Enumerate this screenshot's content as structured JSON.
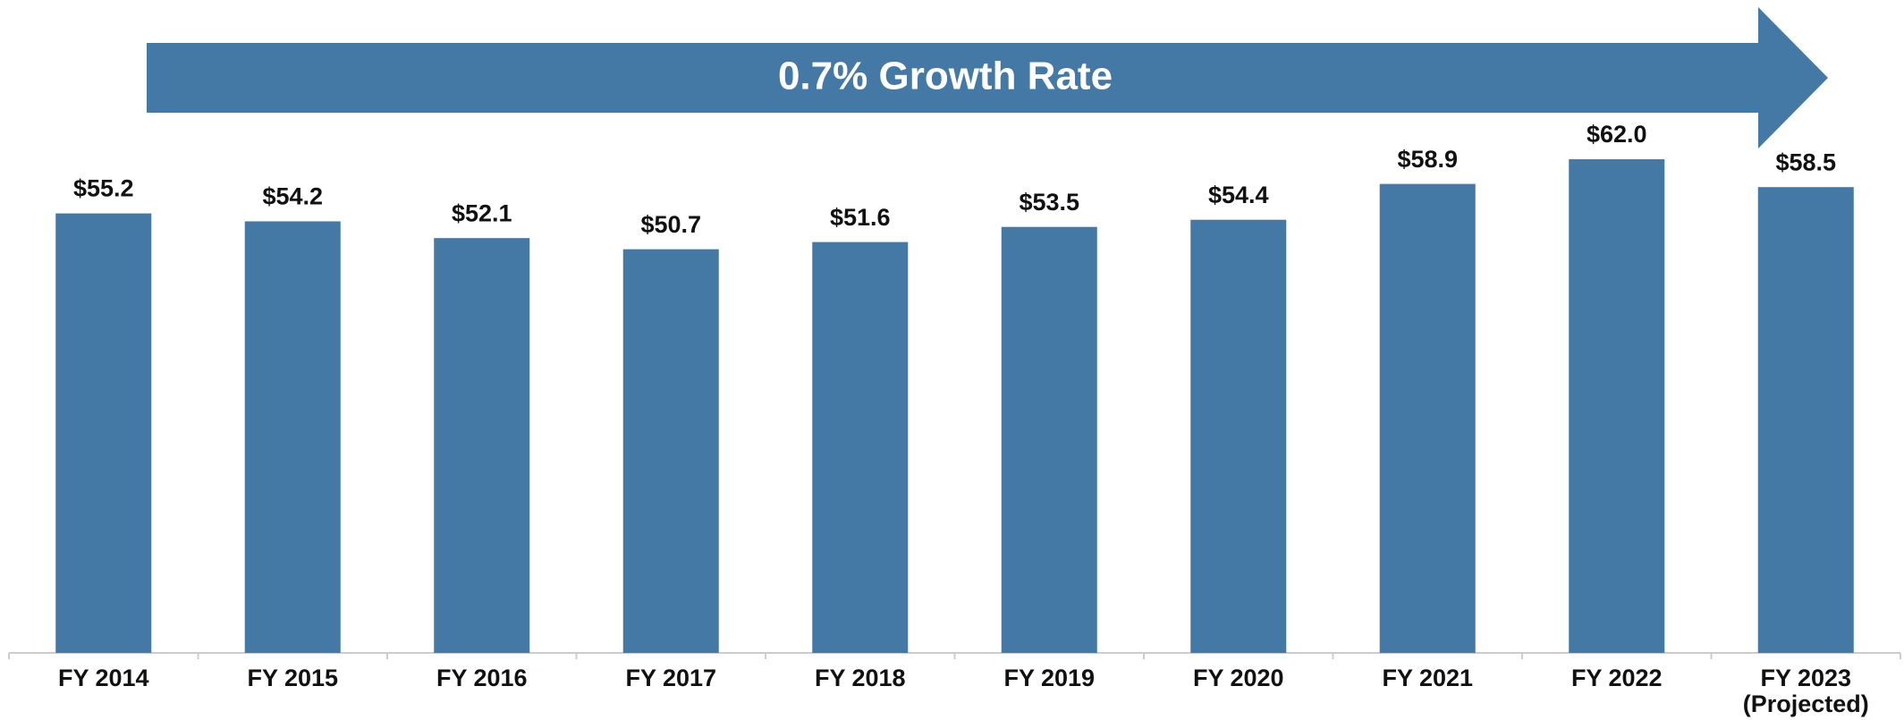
{
  "chart_data": {
    "type": "bar",
    "annotation": "0.7% Growth Rate",
    "categories": [
      "FY 2014",
      "FY 2015",
      "FY 2016",
      "FY 2017",
      "FY 2018",
      "FY 2019",
      "FY 2020",
      "FY 2021",
      "FY 2022",
      "FY 2023\n(Projected)"
    ],
    "values": [
      55.2,
      54.2,
      52.1,
      50.7,
      51.6,
      53.5,
      54.4,
      58.9,
      62.0,
      58.5
    ],
    "value_labels": [
      "$55.2",
      "$54.2",
      "$52.1",
      "$50.7",
      "$51.6",
      "$53.5",
      "$54.4",
      "$58.9",
      "$62.0",
      "$58.5"
    ],
    "color": "#4579a5",
    "ylim": [
      0,
      82
    ]
  }
}
